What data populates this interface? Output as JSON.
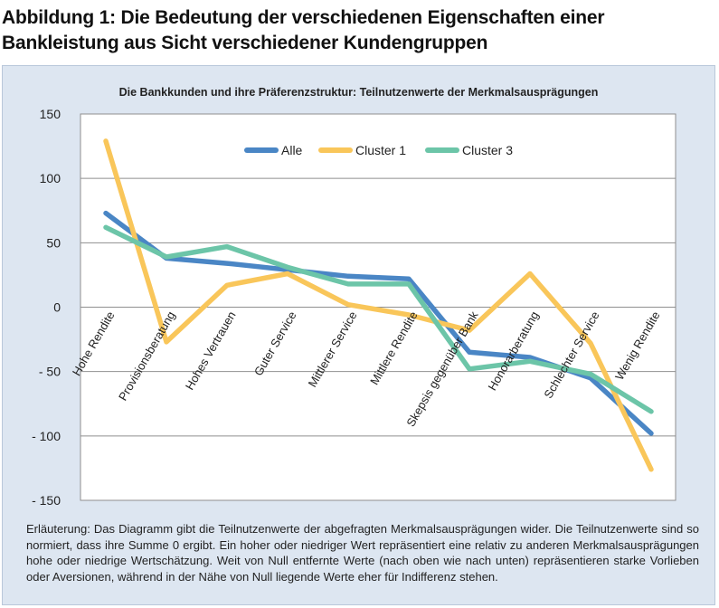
{
  "figure_title": "Abbildung 1: Die Bedeutung der verschiedenen Eigenschaften einer Bankleistung aus Sicht verschiedener Kundengruppen",
  "caption": "Erläuterung: Das Diagramm gibt die Teilnutzenwerte der abgefragten Merkmalsausprägungen wider. Die Teilnutzenwerte sind so normiert, dass ihre Summe 0 ergibt. Ein hoher oder niedriger Wert repräsentiert eine relativ zu anderen Merkmalsausprägungen hohe oder niedrige Wertschätzung. Weit von Null entfernte Werte (nach oben wie nach unten) repräsentieren starke Vorlieben oder Aversionen, während in der Nähe von Null liegende Werte eher für Indifferenz stehen.",
  "chart_data": {
    "type": "line",
    "title": "Die Bankkunden und ihre Präferenzstruktur: Teilnutzenwerte der Merkmalsausprägungen",
    "xlabel": "",
    "ylabel": "",
    "categories": [
      "Hohe Rendite",
      "Provisionsberatung",
      "Hohes Vertrauen",
      "Guter Service",
      "Mittlerer Service",
      "Mittlere Rendite",
      "Skepsis gegenüber Bank",
      "Honorarberatung",
      "Schlechter Service",
      "Wenig Rendite"
    ],
    "ylim": [
      -150,
      150
    ],
    "yticks": [
      150,
      100,
      50,
      0,
      -50,
      -100,
      -150
    ],
    "ytick_labels": [
      "150",
      "100",
      "50",
      "0",
      "- 50",
      "- 100",
      "- 150"
    ],
    "grid": true,
    "legend_position": "top-center",
    "series": [
      {
        "name": "Alle",
        "color": "#4a86c5",
        "values": [
          73,
          38,
          34,
          29,
          24,
          22,
          -35,
          -39,
          -55,
          -98
        ]
      },
      {
        "name": "Cluster 1",
        "color": "#f9c65a",
        "values": [
          129,
          -27,
          17,
          26,
          2,
          -6,
          -18,
          26,
          -28,
          -126
        ]
      },
      {
        "name": "Cluster 3",
        "color": "#6cc5a8",
        "values": [
          62,
          39,
          47,
          31,
          18,
          18,
          -48,
          -42,
          -52,
          -81
        ]
      }
    ]
  }
}
